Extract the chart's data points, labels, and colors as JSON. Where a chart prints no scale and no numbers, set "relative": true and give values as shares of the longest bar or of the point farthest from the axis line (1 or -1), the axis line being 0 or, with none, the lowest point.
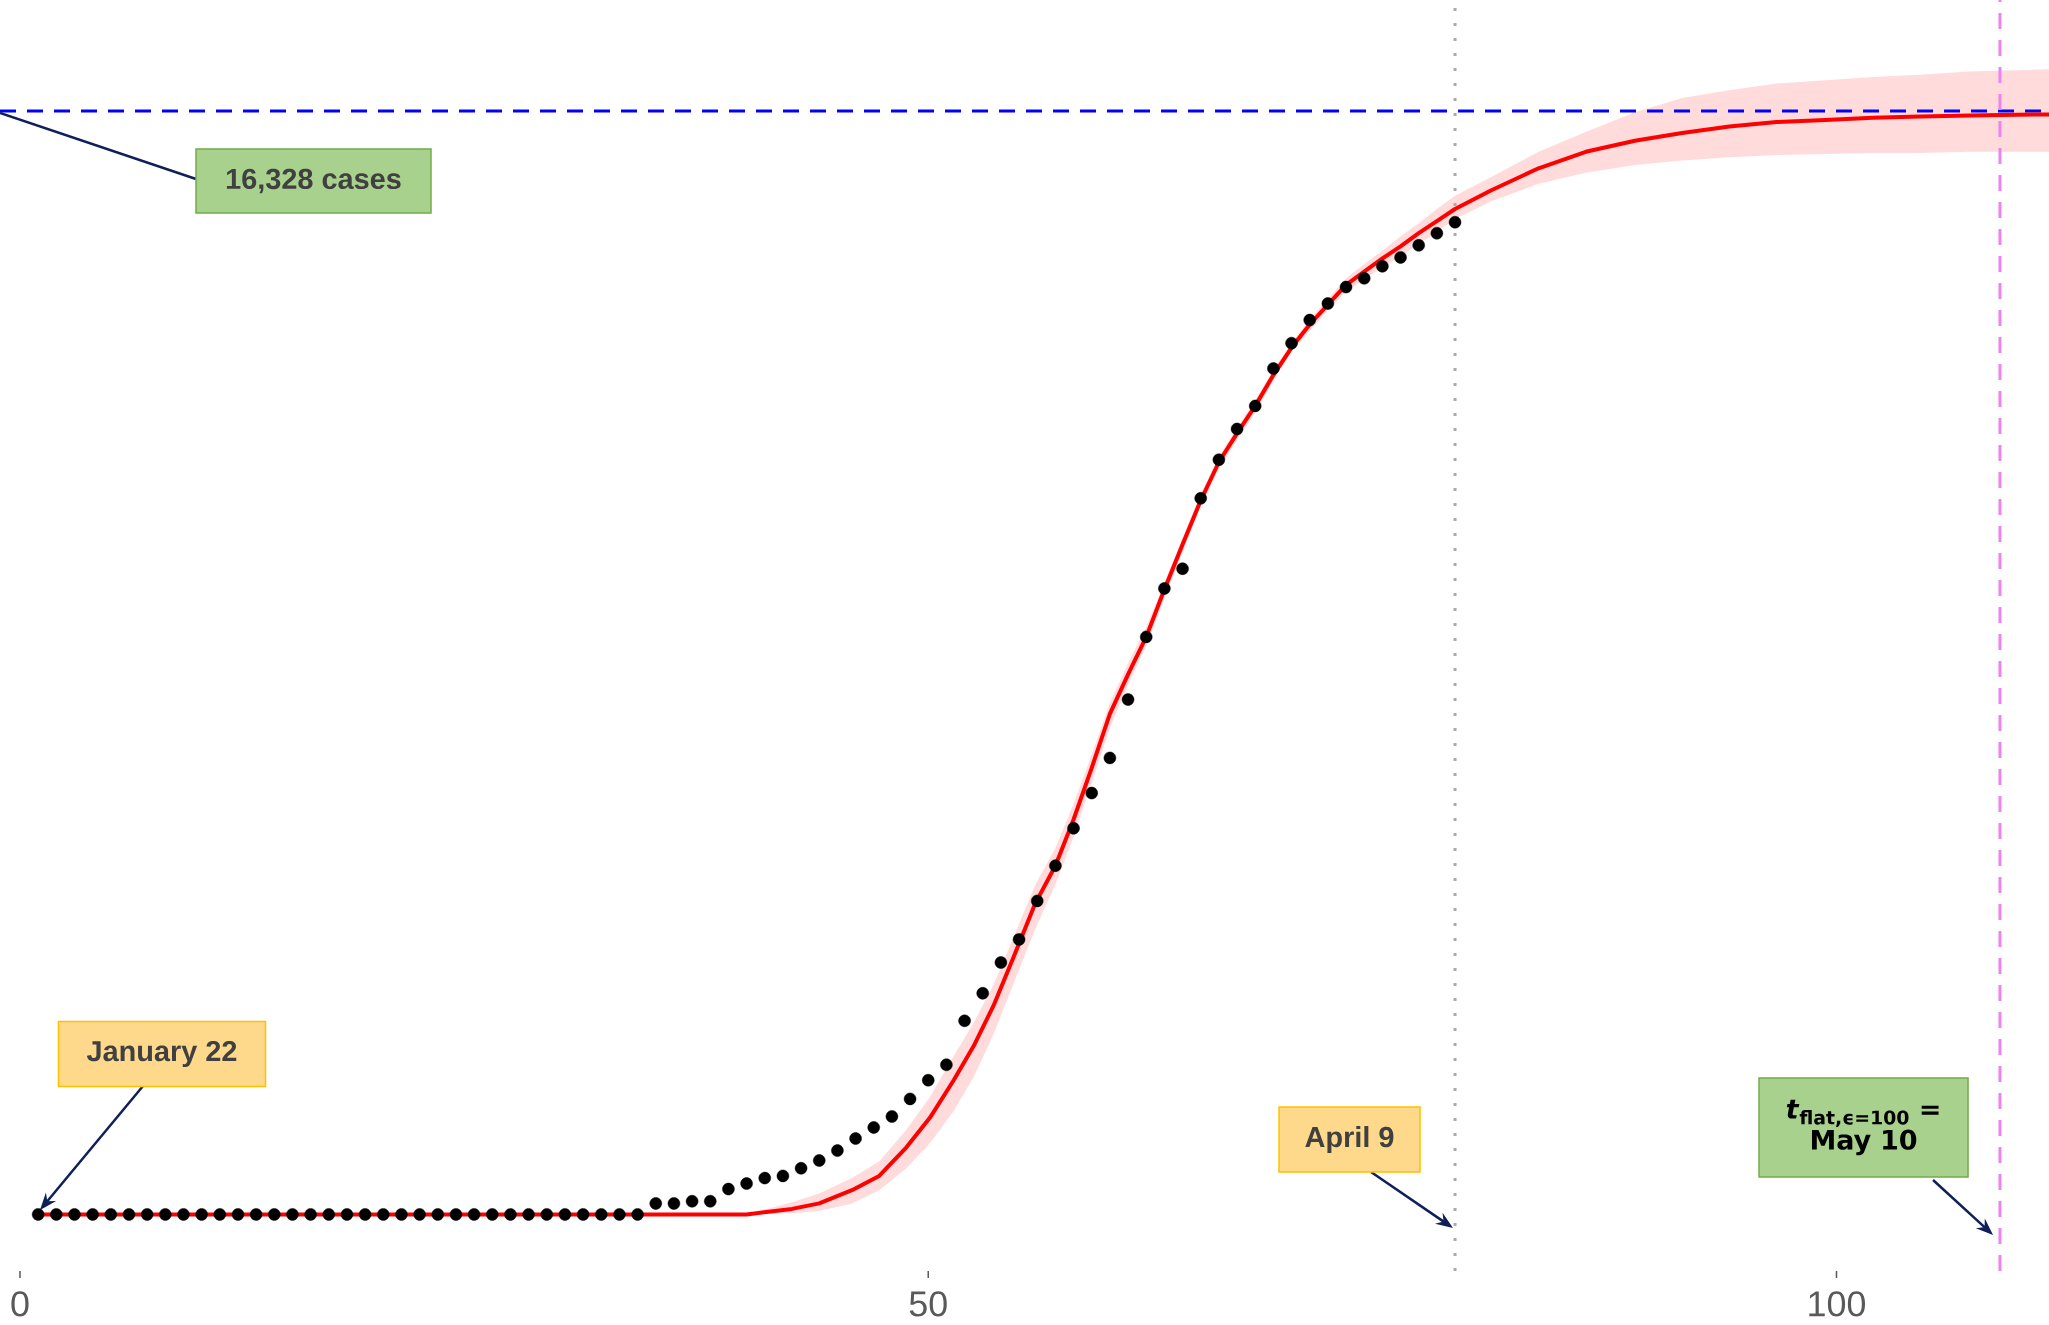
{
  "chart_data": {
    "type": "scatter",
    "relative": true,
    "xlim": [
      -1.1,
      111.7
    ],
    "xticks": [
      0,
      50,
      100
    ],
    "tick_labels": "x",
    "series": [
      {
        "type": "line",
        "color": "#ff0000",
        "x": [
          1,
          40,
          42.5,
          44,
          45.8,
          47.3,
          48.8,
          50.1,
          51.4,
          52.5,
          53.6,
          54.7,
          55.9,
          57,
          58,
          59,
          60,
          61,
          62,
          63,
          64,
          65,
          66,
          67,
          68,
          69,
          70,
          71,
          72,
          73,
          74,
          75,
          76,
          77,
          78,
          79,
          81,
          83.6,
          86.2,
          88.9,
          91.5,
          94.1,
          96.7,
          99.4,
          102,
          104.6,
          107.3,
          111.7
        ],
        "values": [
          0,
          0,
          0.005,
          0.01,
          0.022,
          0.035,
          0.061,
          0.088,
          0.122,
          0.153,
          0.19,
          0.234,
          0.283,
          0.317,
          0.359,
          0.406,
          0.455,
          0.491,
          0.525,
          0.568,
          0.609,
          0.649,
          0.684,
          0.71,
          0.735,
          0.763,
          0.788,
          0.809,
          0.827,
          0.845,
          0.857,
          0.869,
          0.88,
          0.892,
          0.903,
          0.914,
          0.931,
          0.951,
          0.966,
          0.976,
          0.983,
          0.989,
          0.993,
          0.995,
          0.997,
          0.998,
          0.999,
          1.0
        ],
        "lower": [
          0,
          0,
          0.001,
          0.003,
          0.01,
          0.022,
          0.042,
          0.065,
          0.094,
          0.125,
          0.164,
          0.21,
          0.26,
          0.3,
          0.343,
          0.392,
          0.442,
          0.481,
          0.517,
          0.56,
          0.602,
          0.644,
          0.678,
          0.704,
          0.729,
          0.758,
          0.784,
          0.803,
          0.822,
          0.839,
          0.85,
          0.861,
          0.871,
          0.882,
          0.893,
          0.905,
          0.921,
          0.937,
          0.947,
          0.954,
          0.958,
          0.961,
          0.963,
          0.964,
          0.965,
          0.965,
          0.966,
          0.966
        ],
        "upper": [
          0,
          0,
          0.011,
          0.019,
          0.033,
          0.048,
          0.077,
          0.107,
          0.144,
          0.174,
          0.209,
          0.252,
          0.3,
          0.333,
          0.373,
          0.418,
          0.465,
          0.501,
          0.534,
          0.574,
          0.615,
          0.655,
          0.689,
          0.715,
          0.74,
          0.768,
          0.792,
          0.814,
          0.832,
          0.851,
          0.864,
          0.876,
          0.889,
          0.901,
          0.914,
          0.926,
          0.943,
          0.966,
          0.984,
          1.002,
          1.015,
          1.022,
          1.028,
          1.031,
          1.034,
          1.036,
          1.039,
          1.041
        ]
      },
      {
        "color": "#000000",
        "marker": "circle",
        "x": [
          1,
          2,
          3,
          4,
          5,
          6,
          7,
          8,
          9,
          10,
          11,
          12,
          13,
          14,
          15,
          16,
          17,
          18,
          19,
          20,
          21,
          22,
          23,
          24,
          25,
          26,
          27,
          28,
          29,
          30,
          31,
          32,
          33,
          34,
          35,
          36,
          37,
          38,
          39,
          40,
          41,
          42,
          43,
          44,
          45,
          46,
          47,
          48,
          49,
          50,
          51,
          52,
          53,
          54,
          55,
          56,
          57,
          58,
          59,
          60,
          61,
          62,
          63,
          64,
          65,
          66,
          67,
          68,
          69,
          70,
          71,
          72,
          73,
          74,
          75,
          76,
          77,
          78,
          79
        ],
        "values": [
          0,
          0,
          0,
          0,
          0,
          0,
          0,
          0,
          0,
          0,
          0,
          0,
          0,
          0,
          0,
          0,
          0,
          0,
          0,
          0,
          0,
          0,
          0,
          0,
          0,
          0,
          0,
          0,
          0,
          0,
          0,
          0,
          0,
          0,
          0.01,
          0.01,
          0.012,
          0.012,
          0.023,
          0.028,
          0.033,
          0.035,
          0.042,
          0.049,
          0.058,
          0.069,
          0.079,
          0.089,
          0.105,
          0.122,
          0.136,
          0.176,
          0.201,
          0.229,
          0.25,
          0.285,
          0.317,
          0.351,
          0.383,
          0.415,
          0.468,
          0.525,
          0.569,
          0.587,
          0.651,
          0.686,
          0.714,
          0.735,
          0.769,
          0.792,
          0.813,
          0.828,
          0.843,
          0.851,
          0.862,
          0.87,
          0.881,
          0.892,
          0.902
        ]
      }
    ],
    "ref_lines": [
      {
        "axis": "y",
        "value": 1.003,
        "color": "#0000ff",
        "line_style": "dashed"
      },
      {
        "axis": "x",
        "value": 79,
        "color": "#aaaaaa",
        "line_style": "dotted"
      },
      {
        "axis": "x",
        "value": 109,
        "color": "#ee82ee",
        "line_style": "dashed"
      }
    ],
    "annotations": [
      "16,328 cases",
      "January 22",
      "April 9",
      "*t*$_{flat,ϵ=100}$ = May 10"
    ]
  }
}
